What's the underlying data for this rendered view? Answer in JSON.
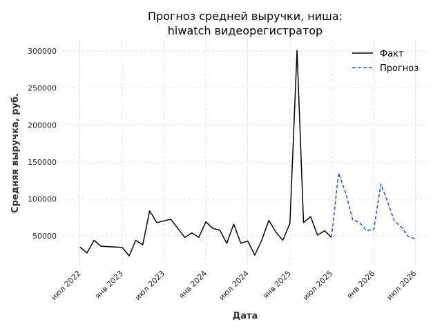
{
  "chart_data": {
    "type": "line",
    "title_lines": [
      "Прогноз средней выручки, ниша:",
      "hiwatch видеорегистратор"
    ],
    "xlabel": "Дата",
    "ylabel": "Средняя выручка, руб.",
    "ylim": [
      10000,
      315000
    ],
    "yticks": [
      50000,
      100000,
      150000,
      200000,
      250000,
      300000
    ],
    "xlim": [
      "2022-04-15",
      "2026-09-01"
    ],
    "xticks": [
      {
        "date": "2022-07-01",
        "label": "июл 2022"
      },
      {
        "date": "2023-01-01",
        "label": "янв 2023"
      },
      {
        "date": "2023-07-01",
        "label": "июл 2023"
      },
      {
        "date": "2024-01-01",
        "label": "янв 2024"
      },
      {
        "date": "2024-07-01",
        "label": "июл 2024"
      },
      {
        "date": "2025-01-01",
        "label": "янв 2025"
      },
      {
        "date": "2025-07-01",
        "label": "июл 2025"
      },
      {
        "date": "2026-01-01",
        "label": "янв 2026"
      },
      {
        "date": "2026-07-01",
        "label": "июл 2026"
      }
    ],
    "grid": true,
    "legend_position": "top-right",
    "series": [
      {
        "name": "Факт",
        "color": "#000000",
        "style": "solid",
        "points": [
          [
            "2022-07-01",
            35000
          ],
          [
            "2022-08-01",
            27000
          ],
          [
            "2022-09-01",
            44000
          ],
          [
            "2022-10-01",
            36000
          ],
          [
            "2023-01-01",
            34500
          ],
          [
            "2023-02-01",
            23000
          ],
          [
            "2023-03-01",
            44000
          ],
          [
            "2023-04-01",
            38000
          ],
          [
            "2023-05-01",
            84000
          ],
          [
            "2023-06-01",
            68000
          ],
          [
            "2023-08-01",
            72500
          ],
          [
            "2023-09-01",
            60000
          ],
          [
            "2023-10-01",
            48000
          ],
          [
            "2023-11-01",
            54000
          ],
          [
            "2023-12-01",
            48000
          ],
          [
            "2024-01-01",
            69000
          ],
          [
            "2024-02-01",
            60000
          ],
          [
            "2024-03-01",
            58000
          ],
          [
            "2024-04-01",
            40000
          ],
          [
            "2024-05-01",
            66000
          ],
          [
            "2024-06-01",
            40000
          ],
          [
            "2024-07-01",
            43000
          ],
          [
            "2024-08-01",
            24000
          ],
          [
            "2024-09-01",
            45000
          ],
          [
            "2024-10-01",
            71000
          ],
          [
            "2024-11-01",
            55000
          ],
          [
            "2024-12-01",
            44000
          ],
          [
            "2025-01-01",
            67000
          ],
          [
            "2025-02-01",
            301000
          ],
          [
            "2025-03-01",
            68000
          ],
          [
            "2025-04-01",
            76000
          ],
          [
            "2025-05-01",
            51000
          ],
          [
            "2025-06-01",
            57000
          ],
          [
            "2025-07-01",
            48000
          ]
        ]
      },
      {
        "name": "Прогноз",
        "color": "#1f4fd6",
        "style": "dashed",
        "points": [
          [
            "2025-07-01",
            48000
          ],
          [
            "2025-08-01",
            135000
          ],
          [
            "2025-09-01",
            108000
          ],
          [
            "2025-10-01",
            72000
          ],
          [
            "2025-11-01",
            68000
          ],
          [
            "2025-12-01",
            57000
          ],
          [
            "2026-01-01",
            59000
          ],
          [
            "2026-02-01",
            120000
          ],
          [
            "2026-03-01",
            97000
          ],
          [
            "2026-04-01",
            70000
          ],
          [
            "2026-05-01",
            62000
          ],
          [
            "2026-06-01",
            49000
          ],
          [
            "2026-07-01",
            46000
          ]
        ]
      }
    ]
  }
}
